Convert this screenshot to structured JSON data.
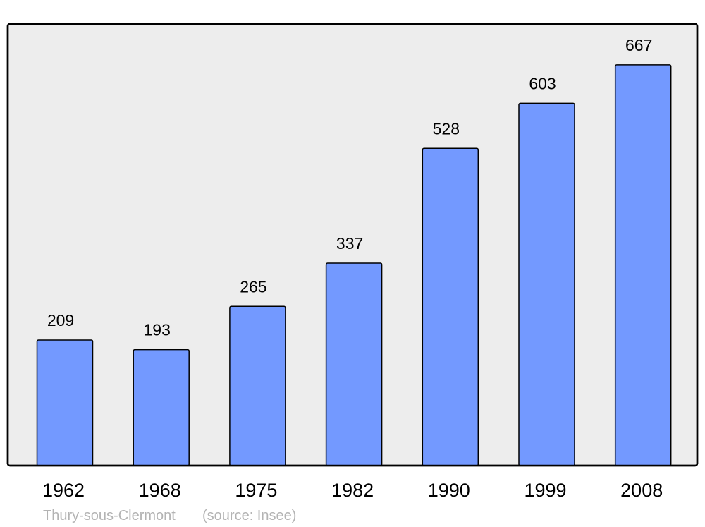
{
  "chart_data": {
    "type": "bar",
    "categories": [
      "1962",
      "1968",
      "1975",
      "1982",
      "1990",
      "1999",
      "2008"
    ],
    "values": [
      209,
      193,
      265,
      337,
      528,
      603,
      667
    ],
    "data_labels": [
      "209",
      "193",
      "265",
      "337",
      "528",
      "603",
      "667"
    ],
    "title": "",
    "xlabel": "",
    "ylabel": "",
    "ylim": [
      0,
      735
    ],
    "grid": false,
    "colors": {
      "bar": "#7399ff",
      "plot_background": "#ededed",
      "frame": "#000000",
      "footer_text": "#b3b3b3"
    }
  },
  "footer": {
    "place": "Thury-sous-Clermont",
    "source": "(source: Insee)"
  }
}
